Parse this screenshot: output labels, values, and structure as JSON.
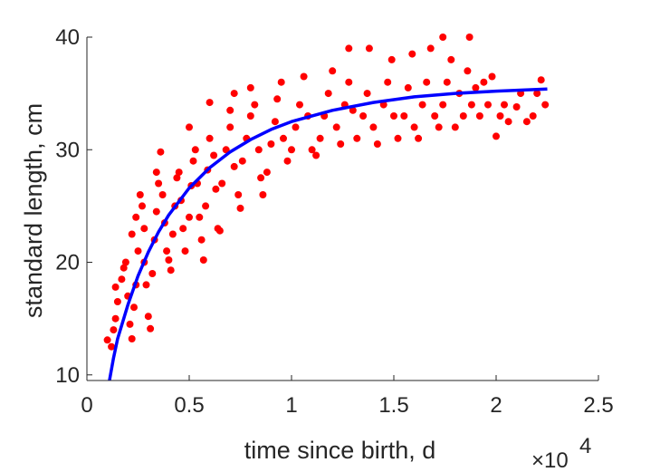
{
  "chart_data": {
    "type": "scatter",
    "xlabel": "time since birth, d",
    "ylabel": "standard length, cm",
    "x_exponent_label": "×10",
    "x_exponent_power": "4",
    "xlim": [
      0,
      2.5
    ],
    "ylim": [
      9.5,
      40
    ],
    "x_ticks": [
      0,
      0.5,
      1,
      1.5,
      2,
      2.5
    ],
    "x_tick_labels": [
      "0",
      "0.5",
      "1",
      "1.5",
      "2",
      "2.5"
    ],
    "y_ticks": [
      10,
      20,
      30,
      40
    ],
    "y_tick_labels": [
      "10",
      "20",
      "30",
      "40"
    ],
    "grid": false,
    "colors": {
      "points": "#ff0000",
      "curve": "#0000ff",
      "axis": "#262626"
    },
    "series": [
      {
        "kind": "points",
        "points": [
          [
            0.1,
            13.1
          ],
          [
            0.12,
            12.5
          ],
          [
            0.13,
            14
          ],
          [
            0.14,
            15
          ],
          [
            0.15,
            16.5
          ],
          [
            0.14,
            17.8
          ],
          [
            0.17,
            18.5
          ],
          [
            0.18,
            19.5
          ],
          [
            0.19,
            20
          ],
          [
            0.2,
            17
          ],
          [
            0.21,
            14.5
          ],
          [
            0.22,
            13.2
          ],
          [
            0.23,
            16
          ],
          [
            0.24,
            18
          ],
          [
            0.25,
            21
          ],
          [
            0.22,
            22.5
          ],
          [
            0.24,
            24
          ],
          [
            0.26,
            26
          ],
          [
            0.27,
            25
          ],
          [
            0.28,
            23
          ],
          [
            0.28,
            20
          ],
          [
            0.29,
            18
          ],
          [
            0.3,
            15.2
          ],
          [
            0.31,
            14.1
          ],
          [
            0.32,
            19
          ],
          [
            0.33,
            22
          ],
          [
            0.34,
            24.5
          ],
          [
            0.35,
            27
          ],
          [
            0.34,
            28
          ],
          [
            0.36,
            29.8
          ],
          [
            0.37,
            26
          ],
          [
            0.38,
            23.5
          ],
          [
            0.39,
            21
          ],
          [
            0.4,
            20.2
          ],
          [
            0.41,
            19.3
          ],
          [
            0.42,
            22.5
          ],
          [
            0.43,
            25
          ],
          [
            0.44,
            27.5
          ],
          [
            0.45,
            28
          ],
          [
            0.46,
            25.5
          ],
          [
            0.47,
            23
          ],
          [
            0.48,
            21
          ],
          [
            0.5,
            24
          ],
          [
            0.51,
            26.8
          ],
          [
            0.52,
            29
          ],
          [
            0.5,
            32
          ],
          [
            0.53,
            30
          ],
          [
            0.54,
            27
          ],
          [
            0.55,
            24
          ],
          [
            0.56,
            22
          ],
          [
            0.57,
            20.2
          ],
          [
            0.58,
            25
          ],
          [
            0.59,
            28.2
          ],
          [
            0.6,
            31
          ],
          [
            0.6,
            34.2
          ],
          [
            0.62,
            29.5
          ],
          [
            0.63,
            26.5
          ],
          [
            0.64,
            23
          ],
          [
            0.65,
            22.8
          ],
          [
            0.66,
            27
          ],
          [
            0.68,
            30
          ],
          [
            0.7,
            32
          ],
          [
            0.7,
            33.5
          ],
          [
            0.72,
            35
          ],
          [
            0.72,
            28.5
          ],
          [
            0.74,
            26
          ],
          [
            0.75,
            24.8
          ],
          [
            0.76,
            29
          ],
          [
            0.78,
            31
          ],
          [
            0.8,
            33
          ],
          [
            0.8,
            35.5
          ],
          [
            0.82,
            34
          ],
          [
            0.84,
            30
          ],
          [
            0.85,
            27.5
          ],
          [
            0.86,
            26
          ],
          [
            0.88,
            28
          ],
          [
            0.9,
            30.5
          ],
          [
            0.92,
            32.5
          ],
          [
            0.93,
            34.5
          ],
          [
            0.95,
            36
          ],
          [
            0.96,
            31
          ],
          [
            0.98,
            29
          ],
          [
            1,
            30
          ],
          [
            1.02,
            32
          ],
          [
            1.04,
            34
          ],
          [
            1.06,
            36.5
          ],
          [
            1.08,
            33
          ],
          [
            1.1,
            30
          ],
          [
            1.12,
            29.5
          ],
          [
            1.14,
            31
          ],
          [
            1.16,
            33
          ],
          [
            1.18,
            35
          ],
          [
            1.2,
            37
          ],
          [
            1.22,
            32
          ],
          [
            1.24,
            30.5
          ],
          [
            1.26,
            34
          ],
          [
            1.28,
            36
          ],
          [
            1.28,
            39
          ],
          [
            1.3,
            33.5
          ],
          [
            1.32,
            31
          ],
          [
            1.35,
            33
          ],
          [
            1.37,
            35
          ],
          [
            1.38,
            39
          ],
          [
            1.4,
            32
          ],
          [
            1.42,
            30.5
          ],
          [
            1.45,
            34
          ],
          [
            1.47,
            36
          ],
          [
            1.49,
            38
          ],
          [
            1.5,
            33
          ],
          [
            1.52,
            31
          ],
          [
            1.55,
            33
          ],
          [
            1.57,
            35.5
          ],
          [
            1.59,
            38.5
          ],
          [
            1.6,
            32
          ],
          [
            1.62,
            31
          ],
          [
            1.64,
            34
          ],
          [
            1.66,
            36
          ],
          [
            1.68,
            39
          ],
          [
            1.7,
            33
          ],
          [
            1.72,
            32
          ],
          [
            1.74,
            34
          ],
          [
            1.74,
            40
          ],
          [
            1.76,
            36
          ],
          [
            1.78,
            38
          ],
          [
            1.8,
            32
          ],
          [
            1.82,
            35
          ],
          [
            1.84,
            33
          ],
          [
            1.86,
            37
          ],
          [
            1.87,
            40
          ],
          [
            1.88,
            34
          ],
          [
            1.9,
            35.5
          ],
          [
            1.92,
            33
          ],
          [
            1.94,
            36
          ],
          [
            1.96,
            34
          ],
          [
            1.98,
            36.5
          ],
          [
            2,
            31.2
          ],
          [
            2.02,
            33
          ],
          [
            2.04,
            34
          ],
          [
            2.06,
            32.5
          ],
          [
            2.1,
            33.8
          ],
          [
            2.12,
            35
          ],
          [
            2.15,
            32.5
          ],
          [
            2.18,
            33
          ],
          [
            2.2,
            35
          ],
          [
            2.22,
            36.2
          ],
          [
            2.24,
            34
          ]
        ]
      },
      {
        "kind": "line",
        "points": [
          [
            0.11,
            9.5
          ],
          [
            0.13,
            11.5
          ],
          [
            0.15,
            13.2
          ],
          [
            0.2,
            16.2
          ],
          [
            0.25,
            18.8
          ],
          [
            0.3,
            20.9
          ],
          [
            0.35,
            22.7
          ],
          [
            0.4,
            24.2
          ],
          [
            0.5,
            26.6
          ],
          [
            0.6,
            28.4
          ],
          [
            0.7,
            29.8
          ],
          [
            0.8,
            30.9
          ],
          [
            0.9,
            31.8
          ],
          [
            1,
            32.5
          ],
          [
            1.2,
            33.5
          ],
          [
            1.4,
            34.2
          ],
          [
            1.6,
            34.7
          ],
          [
            1.8,
            35
          ],
          [
            2,
            35.2
          ],
          [
            2.25,
            35.4
          ]
        ]
      }
    ]
  }
}
